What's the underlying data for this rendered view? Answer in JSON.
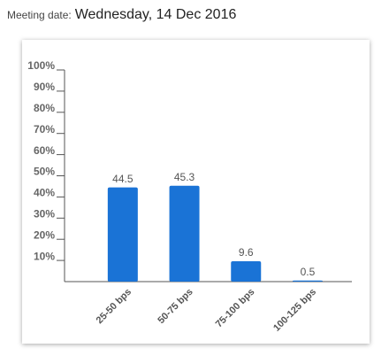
{
  "header": {
    "label": "Meeting date:",
    "date": "Wednesday, 14 Dec 2016"
  },
  "chart_data": {
    "type": "bar",
    "categories": [
      "25-50 bps",
      "50-75 bps",
      "75-100 bps",
      "100-125 bps"
    ],
    "values": [
      44.5,
      45.3,
      9.6,
      0.5
    ],
    "color": "#1a73d6",
    "ylim": [
      0,
      100
    ],
    "yticks": [
      {
        "value": 10,
        "label": "10%"
      },
      {
        "value": 20,
        "label": "20%"
      },
      {
        "value": 30,
        "label": "30%"
      },
      {
        "value": 40,
        "label": "40%"
      },
      {
        "value": 50,
        "label": "50%"
      },
      {
        "value": 60,
        "label": "60%"
      },
      {
        "value": 70,
        "label": "70%"
      },
      {
        "value": 80,
        "label": "80%"
      },
      {
        "value": 90,
        "label": "90%"
      },
      {
        "value": 100,
        "label": "100%"
      }
    ],
    "grid": false
  }
}
